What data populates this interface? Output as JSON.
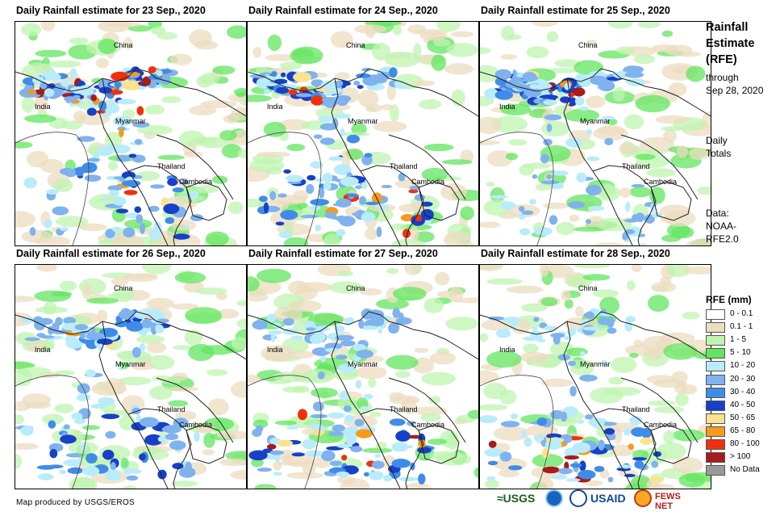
{
  "panels": [
    {
      "title": "Daily Rainfall estimate for 23 Sep., 2020",
      "pattern": [
        1,
        1,
        1,
        1,
        0.9,
        0.6
      ]
    },
    {
      "title": "Daily Rainfall estimate for 24 Sep., 2020",
      "pattern": [
        1,
        0.9,
        0.6,
        0.6,
        1,
        0.9
      ]
    },
    {
      "title": "Daily Rainfall estimate for 25 Sep., 2020",
      "pattern": [
        0.9,
        1,
        0.6,
        0.4,
        0.5,
        0.4
      ]
    },
    {
      "title": "Daily Rainfall estimate for 26 Sep., 2020",
      "pattern": [
        0.5,
        1,
        0.9,
        0.4,
        0.8,
        0.8
      ]
    },
    {
      "title": "Daily Rainfall estimate for 27 Sep., 2020",
      "pattern": [
        0.3,
        0.4,
        0.5,
        0.6,
        1,
        1
      ]
    },
    {
      "title": "Daily Rainfall estimate for 28 Sep., 2020",
      "pattern": [
        0.2,
        0.3,
        0.4,
        0.3,
        1,
        1
      ]
    }
  ],
  "map_labels": {
    "china": "China",
    "india": "India",
    "myanmar": "Myanmar",
    "thailand": "Thailand",
    "cambodia": "Cambodia"
  },
  "side": {
    "title_line1": "Rainfall",
    "title_line2": "Estimate",
    "title_line3": "(RFE)",
    "through_label": "through",
    "through_date": "Sep 28, 2020",
    "daily_line1": "Daily",
    "daily_line2": "Totals",
    "data_line1": "Data:",
    "data_line2": "NOAA-",
    "data_line3": "RFE2.0"
  },
  "legend": {
    "title": "RFE (mm)",
    "items": [
      {
        "label": "0 - 0.1",
        "color": "#ffffff"
      },
      {
        "label": "0.1 - 1",
        "color": "#ecdcc0"
      },
      {
        "label": "1 - 5",
        "color": "#bff4b0"
      },
      {
        "label": "5 - 10",
        "color": "#61e65f"
      },
      {
        "label": "10 - 20",
        "color": "#b9ecfb"
      },
      {
        "label": "20 - 30",
        "color": "#7fb2ee"
      },
      {
        "label": "30 - 40",
        "color": "#3f8ce8"
      },
      {
        "label": "40 - 50",
        "color": "#1740c8"
      },
      {
        "label": "50 - 65",
        "color": "#fbe28e"
      },
      {
        "label": "65 - 80",
        "color": "#f59a1b"
      },
      {
        "label": "80 - 100",
        "color": "#f0300c"
      },
      {
        "label": "> 100",
        "color": "#a61c1c"
      },
      {
        "label": "No Data",
        "color": "#999999"
      }
    ]
  },
  "footer": {
    "credit": "Map produced by USGS/EROS"
  },
  "logos": {
    "usgs": "≈USGS",
    "usaid": "USAID",
    "fews": "FEWS NET"
  }
}
